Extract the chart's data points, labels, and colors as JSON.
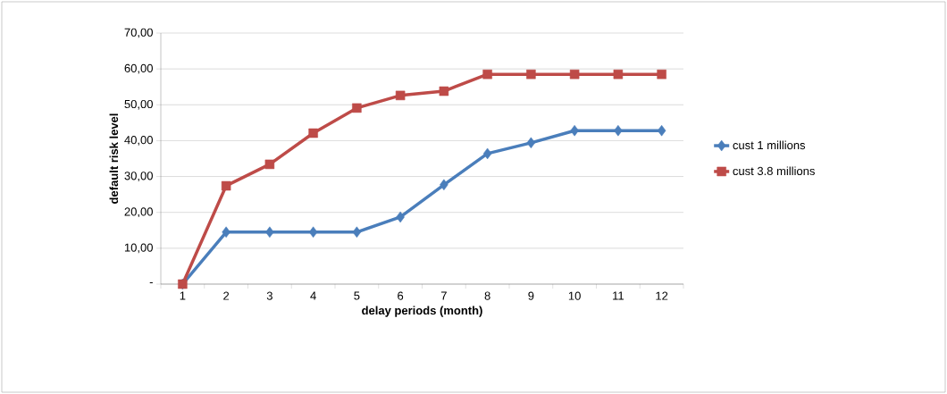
{
  "chart_data": {
    "type": "line",
    "xlabel": "delay periods (month)",
    "ylabel": "default risk level",
    "categories": [
      "1",
      "2",
      "3",
      "4",
      "5",
      "6",
      "7",
      "8",
      "9",
      "10",
      "11",
      "12"
    ],
    "series": [
      {
        "name": "cust 1 millions",
        "color": "#4a7ebb",
        "marker": "diamond",
        "values": [
          0,
          14.5,
          14.5,
          14.5,
          14.5,
          18.7,
          27.7,
          36.4,
          39.4,
          42.8,
          42.8,
          42.8
        ]
      },
      {
        "name": "cust 3.8 millions",
        "color": "#be4b48",
        "marker": "square",
        "values": [
          0,
          27.4,
          33.4,
          42.1,
          49.1,
          52.6,
          53.8,
          58.5,
          58.5,
          58.5,
          58.5,
          58.5
        ]
      }
    ],
    "ylim": [
      0,
      70
    ],
    "yticks": [
      {
        "value": 0,
        "label": "-"
      },
      {
        "value": 10,
        "label": "10,00"
      },
      {
        "value": 20,
        "label": "20,00"
      },
      {
        "value": 30,
        "label": "30,00"
      },
      {
        "value": 40,
        "label": "40,00"
      },
      {
        "value": 50,
        "label": "50,00"
      },
      {
        "value": 60,
        "label": "60,00"
      },
      {
        "value": 70,
        "label": "70,00"
      }
    ],
    "grid": "y",
    "legend": "right",
    "line_style": "solid"
  }
}
